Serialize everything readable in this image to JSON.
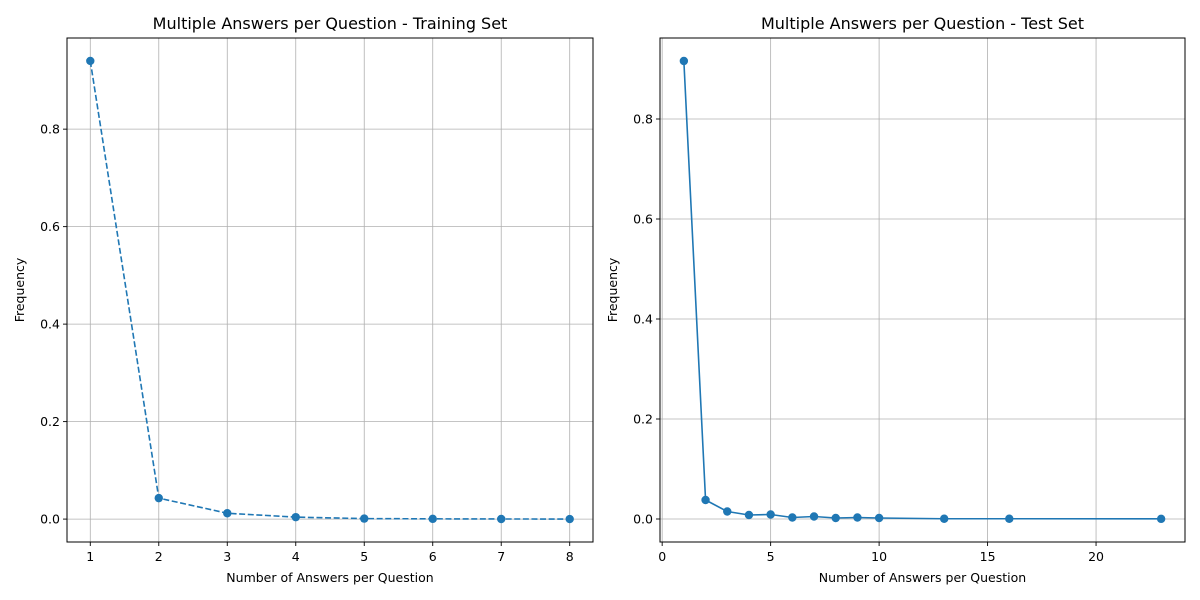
{
  "chart_data": [
    {
      "type": "line",
      "title": "Multiple Answers per Question - Training Set",
      "xlabel": "Number of Answers per Question",
      "ylabel": "Frequency",
      "xlim": [
        0.66,
        8.34
      ],
      "ylim": [
        -0.047,
        0.987
      ],
      "xticks": [
        1,
        2,
        3,
        4,
        5,
        6,
        7,
        8
      ],
      "xtick_labels": [
        "1",
        "2",
        "3",
        "4",
        "5",
        "6",
        "7",
        "8"
      ],
      "yticks": [
        0.0,
        0.2,
        0.4,
        0.6,
        0.8
      ],
      "ytick_labels": [
        "0.0",
        "0.2",
        "0.4",
        "0.6",
        "0.8"
      ],
      "grid": true,
      "series": [
        {
          "line_style": "dashed",
          "marker": "circle",
          "color": "#1f77b4",
          "x": [
            1,
            2,
            3,
            4,
            5,
            6,
            7,
            8
          ],
          "values": [
            0.94,
            0.043,
            0.012,
            0.004,
            0.001,
            0.0005,
            0.0002,
            0.0001
          ]
        }
      ]
    },
    {
      "type": "line",
      "title": "Multiple Answers per Question - Test Set",
      "xlabel": "Number of Answers per Question",
      "ylabel": "Frequency",
      "xlim": [
        -0.1,
        24.1
      ],
      "ylim": [
        -0.046,
        0.962
      ],
      "xticks": [
        0,
        5,
        10,
        15,
        20
      ],
      "xtick_labels": [
        "0",
        "5",
        "10",
        "15",
        "20"
      ],
      "yticks": [
        0.0,
        0.2,
        0.4,
        0.6,
        0.8
      ],
      "ytick_labels": [
        "0.0",
        "0.2",
        "0.4",
        "0.6",
        "0.8"
      ],
      "grid": true,
      "series": [
        {
          "line_style": "solid",
          "marker": "circle",
          "color": "#1f77b4",
          "x": [
            1,
            2,
            3,
            4,
            5,
            6,
            7,
            8,
            9,
            10,
            13,
            16,
            23
          ],
          "values": [
            0.916,
            0.038,
            0.015,
            0.008,
            0.009,
            0.003,
            0.005,
            0.002,
            0.003,
            0.002,
            0.0005,
            0.0005,
            0.0003
          ]
        }
      ]
    }
  ]
}
